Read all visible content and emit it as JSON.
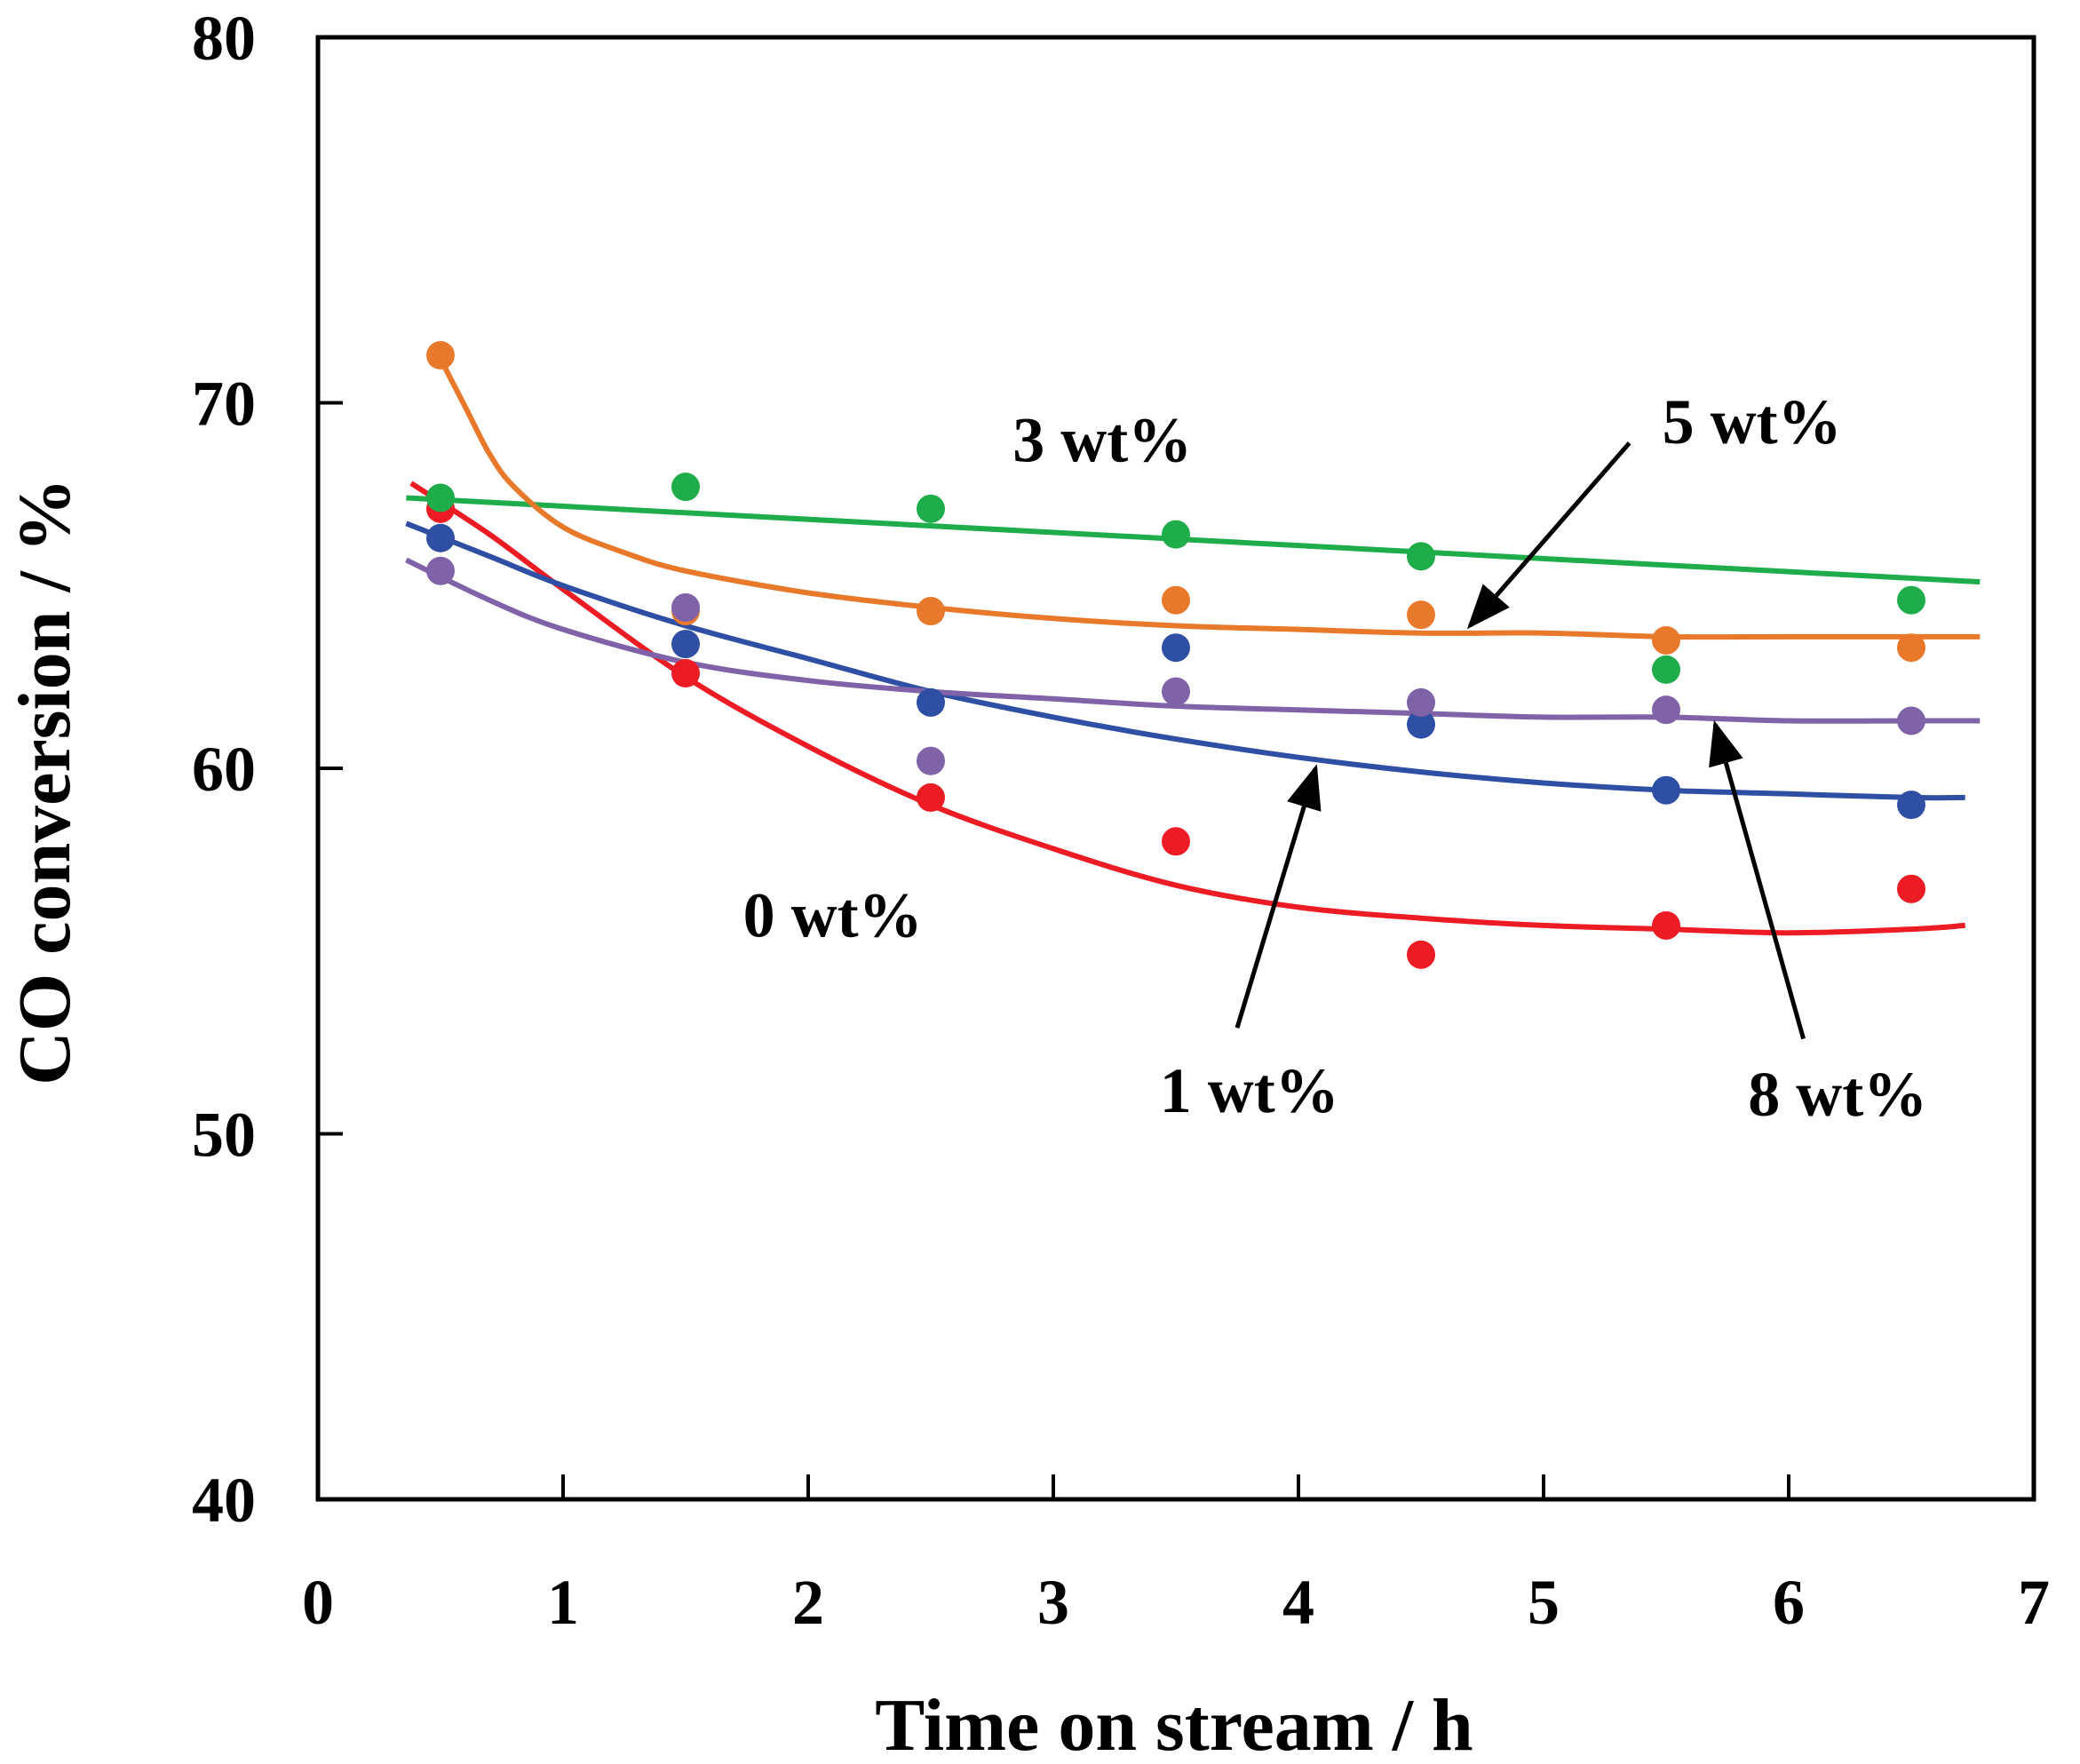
{
  "chart_data": {
    "type": "scatter",
    "title": "",
    "xlabel": "Time on stream / h",
    "ylabel": "CO conversion / %",
    "xlim": [
      0,
      7
    ],
    "ylim": [
      40,
      80
    ],
    "x_ticks": [
      "0",
      "1",
      "2",
      "3",
      "4",
      "5",
      "6",
      "7"
    ],
    "y_ticks": [
      "40",
      "50",
      "60",
      "70",
      "80"
    ],
    "grid": false,
    "series": [
      {
        "name": "0 wt%",
        "color": "#ed1c24",
        "x": [
          0.5,
          1.5,
          2.5,
          3.5,
          4.5,
          5.5,
          6.5
        ],
        "y": [
          67.1,
          62.6,
          59.2,
          58.0,
          54.9,
          55.7,
          56.7
        ],
        "fit_x": [
          0.38,
          0.7,
          1.0,
          1.5,
          2.0,
          2.5,
          3.0,
          3.5,
          4.0,
          4.5,
          5.0,
          5.5,
          6.0,
          6.5,
          6.72
        ],
        "fit_y": [
          67.8,
          66.4,
          64.9,
          62.5,
          60.6,
          59.0,
          57.8,
          56.8,
          56.2,
          55.9,
          55.7,
          55.6,
          55.5,
          55.6,
          55.7
        ]
      },
      {
        "name": "1 wt%",
        "color": "#2e4fa3",
        "x": [
          0.5,
          1.5,
          2.5,
          3.5,
          4.5,
          5.5,
          6.5
        ],
        "y": [
          66.3,
          63.4,
          61.8,
          63.3,
          61.2,
          59.4,
          59.0
        ],
        "fit_x": [
          0.36,
          0.7,
          1.0,
          1.5,
          2.0,
          2.5,
          3.0,
          3.5,
          4.0,
          4.5,
          5.0,
          5.5,
          6.0,
          6.5,
          6.72
        ],
        "fit_y": [
          66.7,
          65.8,
          65.0,
          63.9,
          63.0,
          62.1,
          61.4,
          60.8,
          60.3,
          59.9,
          59.6,
          59.4,
          59.3,
          59.2,
          59.2
        ]
      },
      {
        "name": "3 wt%",
        "color": "#1fac4b",
        "x": [
          0.5,
          1.5,
          2.5,
          3.5,
          4.5,
          5.5,
          6.5
        ],
        "y": [
          67.4,
          67.7,
          67.1,
          66.4,
          65.8,
          62.7,
          64.6
        ],
        "fit_x": [
          0.36,
          6.78
        ],
        "fit_y": [
          67.4,
          65.1
        ]
      },
      {
        "name": "5 wt%",
        "color": "#e8792b",
        "x": [
          0.5,
          1.5,
          2.5,
          3.5,
          4.5,
          5.5,
          6.5
        ],
        "y": [
          71.3,
          64.3,
          64.3,
          64.6,
          64.2,
          63.5,
          63.3
        ],
        "fit_x": [
          0.5,
          0.6,
          0.7,
          0.8,
          1.0,
          1.25,
          1.5,
          2.0,
          2.5,
          3.0,
          3.5,
          4.0,
          4.5,
          5.0,
          5.5,
          6.0,
          6.5,
          6.78
        ],
        "fit_y": [
          71.2,
          69.9,
          68.6,
          67.7,
          66.6,
          65.9,
          65.4,
          64.8,
          64.4,
          64.1,
          63.9,
          63.8,
          63.7,
          63.7,
          63.6,
          63.6,
          63.6,
          63.6
        ]
      },
      {
        "name": "8 wt%",
        "color": "#8062a8",
        "x": [
          0.5,
          1.5,
          2.5,
          3.5,
          4.5,
          5.5,
          6.5
        ],
        "y": [
          65.4,
          64.4,
          60.2,
          62.1,
          61.8,
          61.6,
          61.3
        ],
        "fit_x": [
          0.36,
          0.7,
          1.0,
          1.5,
          2.0,
          2.5,
          3.0,
          3.5,
          4.0,
          4.5,
          5.0,
          5.5,
          6.0,
          6.5,
          6.78
        ],
        "fit_y": [
          65.7,
          64.6,
          63.8,
          62.9,
          62.4,
          62.1,
          61.9,
          61.7,
          61.6,
          61.5,
          61.4,
          61.4,
          61.3,
          61.3,
          61.3
        ]
      }
    ],
    "annotations": [
      {
        "text": "3 wt%",
        "series": "3 wt%",
        "label_at": [
          3.2,
          69.0
        ],
        "arrow_from": null,
        "arrow_to": null
      },
      {
        "text": "5 wt%",
        "series": "5 wt%",
        "label_at": [
          5.85,
          69.5
        ],
        "arrow_from": [
          5.35,
          68.9
        ],
        "arrow_to": [
          4.7,
          63.9
        ]
      },
      {
        "text": "0 wt%",
        "series": "0 wt%",
        "label_at": [
          2.1,
          56.0
        ],
        "arrow_from": null,
        "arrow_to": null
      },
      {
        "text": "1 wt%",
        "series": "1 wt%",
        "label_at": [
          3.8,
          51.2
        ],
        "arrow_from": [
          3.75,
          52.9
        ],
        "arrow_to": [
          4.07,
          60.0
        ]
      },
      {
        "text": "8 wt%",
        "series": "8 wt%",
        "label_at": [
          6.2,
          51.1
        ],
        "arrow_from": [
          6.06,
          52.6
        ],
        "arrow_to": [
          5.7,
          61.2
        ]
      }
    ]
  }
}
